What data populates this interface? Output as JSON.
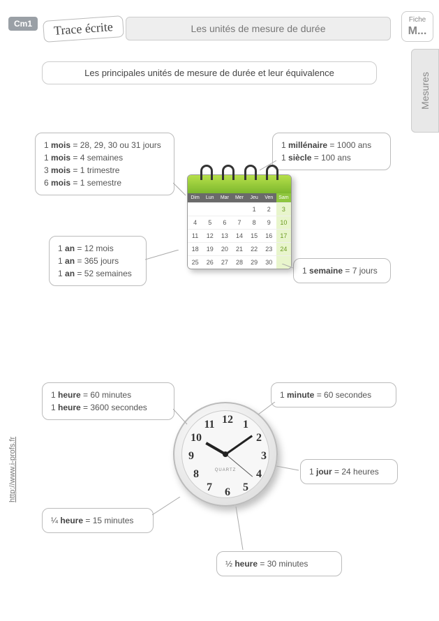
{
  "grade": "Cm1",
  "trace_label": "Trace écrite",
  "title": "Les unités de mesure de durée",
  "fiche": {
    "label": "Fiche",
    "code": "M..."
  },
  "side_tab": "Mesures",
  "section_title": "Les principales unités de mesure de durée et leur équivalence",
  "boxes": {
    "mois": [
      {
        "b": "mois",
        "pre": "1 ",
        "post": " = 28, 29, 30 ou 31 jours"
      },
      {
        "b": "mois",
        "pre": "1 ",
        "post": " = 4 semaines"
      },
      {
        "b": "mois",
        "pre": "3 ",
        "post": " = 1 trimestre"
      },
      {
        "b": "mois",
        "pre": "6 ",
        "post": " = 1 semestre"
      }
    ],
    "mill": [
      {
        "b": "millénaire",
        "pre": "1 ",
        "post": " = 1000 ans"
      },
      {
        "b": "siècle",
        "pre": "1 ",
        "post": " = 100 ans"
      }
    ],
    "an": [
      {
        "b": "an",
        "pre": "1 ",
        "post": " = 12 mois"
      },
      {
        "b": "an",
        "pre": "1 ",
        "post": " = 365 jours"
      },
      {
        "b": "an",
        "pre": "1 ",
        "post": " = 52 semaines"
      }
    ],
    "sem": [
      {
        "b": "semaine",
        "pre": "1 ",
        "post": " = 7 jours"
      }
    ],
    "heure": [
      {
        "b": "heure",
        "pre": "1 ",
        "post": " = 60 minutes"
      },
      {
        "b": "heure",
        "pre": "1 ",
        "post": " = 3600 secondes"
      }
    ],
    "min": [
      {
        "b": "minute",
        "pre": "1 ",
        "post": " = 60 secondes"
      }
    ],
    "jour": [
      {
        "b": "jour",
        "pre": "1 ",
        "post": " = 24 heures"
      }
    ],
    "q": [
      {
        "b": "heure",
        "pre": "¼ ",
        "post": " = 15 minutes"
      }
    ],
    "half": [
      {
        "b": "heure",
        "pre": "½  ",
        "post": " = 30 minutes"
      }
    ]
  },
  "calendar": {
    "day_labels": [
      "Dim",
      "Lun",
      "Mar",
      "Mer",
      "Jeu",
      "Ven",
      "Sam"
    ],
    "dates": [
      [
        "",
        "",
        "",
        "",
        "1",
        "2",
        "3"
      ],
      [
        "4",
        "5",
        "6",
        "7",
        "8",
        "9",
        "10"
      ],
      [
        "11",
        "12",
        "13",
        "14",
        "15",
        "16",
        "17"
      ],
      [
        "18",
        "19",
        "20",
        "21",
        "22",
        "23",
        "24"
      ],
      [
        "25",
        "26",
        "27",
        "28",
        "29",
        "30",
        ""
      ]
    ]
  },
  "clock_numbers": [
    "12",
    "1",
    "2",
    "3",
    "4",
    "5",
    "6",
    "7",
    "8",
    "9",
    "10",
    "11"
  ],
  "clock_label": "QUARTZ",
  "footer": "http://www.i-profs.fr"
}
